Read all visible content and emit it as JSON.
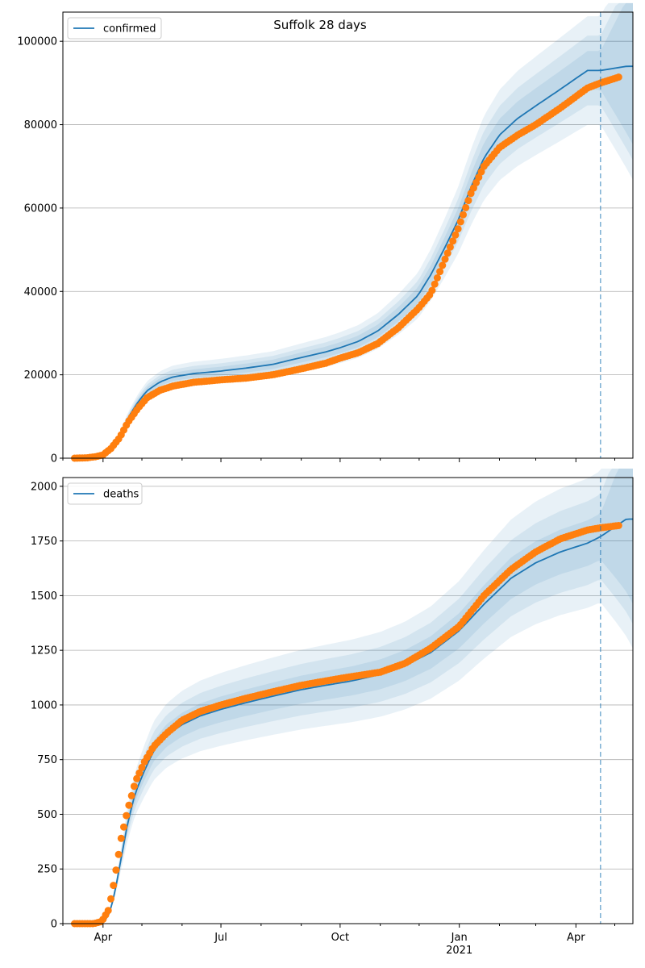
{
  "title": "Suffolk 28 days",
  "x_tick_labels": [
    "Apr",
    "Jul",
    "Oct",
    "Jan",
    "Apr"
  ],
  "x_year_label": "2021",
  "chart_data": [
    {
      "type": "line",
      "series": [
        {
          "name": "confirmed",
          "kind": "model-line",
          "color": "#1f77b4"
        },
        {
          "kind": "observed-points",
          "color": "#ff7f0e"
        }
      ],
      "x_dates": [
        "2020-03-10",
        "2020-03-20",
        "2020-03-27",
        "2020-04-01",
        "2020-04-07",
        "2020-04-14",
        "2020-04-20",
        "2020-04-28",
        "2020-05-05",
        "2020-05-15",
        "2020-05-25",
        "2020-06-10",
        "2020-07-01",
        "2020-07-20",
        "2020-08-10",
        "2020-08-30",
        "2020-09-20",
        "2020-10-01",
        "2020-10-15",
        "2020-10-30",
        "2020-11-15",
        "2020-11-30",
        "2020-12-10",
        "2020-12-20",
        "2020-12-31",
        "2021-01-10",
        "2021-01-20",
        "2021-02-01",
        "2021-02-15",
        "2021-03-01",
        "2021-03-20",
        "2021-04-10",
        "2021-04-20",
        "2021-05-10"
      ],
      "model_values": [
        0,
        200,
        500,
        1000,
        2500,
        5500,
        9500,
        13500,
        16200,
        18300,
        19500,
        20300,
        20900,
        21600,
        22500,
        24000,
        25500,
        26500,
        28000,
        30500,
        34500,
        39000,
        44000,
        50000,
        57000,
        65000,
        72000,
        77500,
        81500,
        84500,
        88500,
        93000,
        93000,
        94000
      ],
      "observed_values": [
        0,
        100,
        400,
        800,
        2300,
        5000,
        8500,
        12000,
        14500,
        16300,
        17300,
        18200,
        18800,
        19200,
        20000,
        21300,
        22800,
        24000,
        25300,
        27500,
        31300,
        35800,
        39500,
        47000,
        55000,
        63500,
        70000,
        74500,
        77500,
        80000,
        84000,
        88800,
        90000,
        92000
      ],
      "observed_last_date": "2021-05-05",
      "band_widths": [
        0.05,
        0.09,
        0.14
      ],
      "forecast_start": "2021-04-20",
      "legend": "top-left",
      "ylim": [
        0,
        107000
      ],
      "y_ticks": [
        0,
        20000,
        40000,
        60000,
        80000,
        100000
      ],
      "y_tick_labels": [
        "0",
        "20000",
        "40000",
        "60000",
        "80000",
        "100000"
      ],
      "grid": "y"
    },
    {
      "type": "line",
      "series": [
        {
          "name": "deaths",
          "kind": "model-line",
          "color": "#1f77b4"
        },
        {
          "kind": "observed-points",
          "color": "#ff7f0e"
        }
      ],
      "x_dates": [
        "2020-03-10",
        "2020-03-25",
        "2020-03-31",
        "2020-04-05",
        "2020-04-08",
        "2020-04-12",
        "2020-04-15",
        "2020-04-20",
        "2020-04-26",
        "2020-05-03",
        "2020-05-10",
        "2020-05-20",
        "2020-06-01",
        "2020-06-15",
        "2020-07-01",
        "2020-07-20",
        "2020-08-10",
        "2020-09-01",
        "2020-09-20",
        "2020-10-10",
        "2020-11-01",
        "2020-11-20",
        "2020-12-10",
        "2021-01-01",
        "2021-01-20",
        "2021-02-10",
        "2021-03-01",
        "2021-03-20",
        "2021-04-10",
        "2021-04-20",
        "2021-05-10"
      ],
      "model_values": [
        0,
        0,
        5,
        30,
        90,
        200,
        300,
        460,
        600,
        700,
        790,
        860,
        910,
        950,
        980,
        1010,
        1040,
        1070,
        1090,
        1110,
        1140,
        1180,
        1240,
        1340,
        1460,
        1580,
        1650,
        1700,
        1740,
        1770,
        1850
      ],
      "observed_values": [
        0,
        0,
        10,
        60,
        140,
        280,
        390,
        520,
        650,
        740,
        810,
        870,
        930,
        970,
        1000,
        1030,
        1060,
        1090,
        1110,
        1130,
        1150,
        1190,
        1260,
        1360,
        1500,
        1620,
        1700,
        1760,
        1800,
        1810,
        1825
      ],
      "observed_last_date": "2021-05-05",
      "band_widths": [
        0.06,
        0.11,
        0.17
      ],
      "forecast_start": "2021-04-20",
      "legend": "top-left",
      "ylim": [
        0,
        2040
      ],
      "y_ticks": [
        0,
        250,
        500,
        750,
        1000,
        1250,
        1500,
        1750,
        2000
      ],
      "y_tick_labels": [
        "0",
        "250",
        "500",
        "750",
        "1000",
        "1250",
        "1500",
        "1750",
        "2000"
      ],
      "grid": "y"
    }
  ]
}
